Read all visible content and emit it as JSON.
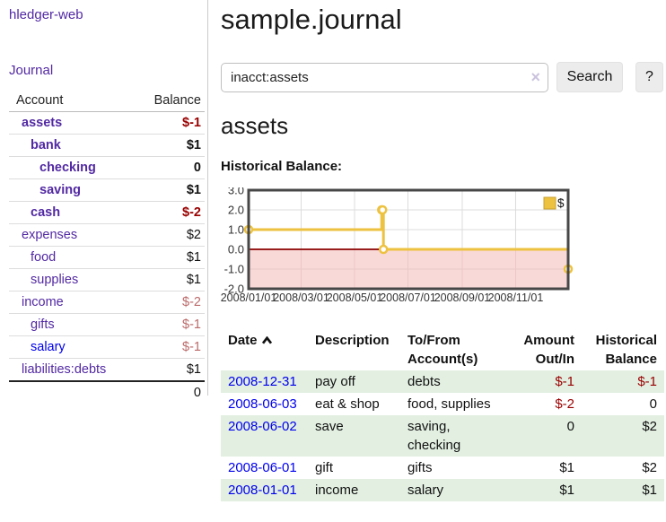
{
  "app": {
    "title": "hledger-web"
  },
  "sidebar": {
    "journal_link": "Journal",
    "accounts": {
      "header": {
        "account": "Account",
        "balance": "Balance"
      },
      "rows": [
        {
          "account": "assets",
          "balance": "$-1"
        },
        {
          "account": "bank",
          "balance": "$1"
        },
        {
          "account": "checking",
          "balance": "0"
        },
        {
          "account": "saving",
          "balance": "$1"
        },
        {
          "account": "cash",
          "balance": "$-2"
        },
        {
          "account": "expenses",
          "balance": "$2"
        },
        {
          "account": "food",
          "balance": "$1"
        },
        {
          "account": "supplies",
          "balance": "$1"
        },
        {
          "account": "income",
          "balance": "$-2"
        },
        {
          "account": "gifts",
          "balance": "$-1"
        },
        {
          "account": "salary",
          "balance": "$-1"
        },
        {
          "account": "liabilities:debts",
          "balance": "$1"
        }
      ],
      "total": "0"
    }
  },
  "main": {
    "title": "sample.journal",
    "search": {
      "value": "inacct:assets",
      "clear_icon": "×",
      "search_button": "Search",
      "help_button": "?"
    },
    "account_heading": "assets",
    "chart_label": "Historical Balance:"
  },
  "chart_data": {
    "type": "line",
    "title": "Historical Balance",
    "step": true,
    "x_range": [
      "2008-01-01",
      "2008-12-31"
    ],
    "ylim": [
      -2,
      3
    ],
    "y_ticks": [
      "3.0",
      "2.0",
      "1.0",
      "0.0",
      "-1.0",
      "-2.0"
    ],
    "x_ticks": [
      "2008/01/01",
      "2008/03/01",
      "2008/05/01",
      "2008/07/01",
      "2008/09/01",
      "2008/11/01"
    ],
    "series": [
      {
        "name": "$",
        "points": [
          [
            "2008-01-01",
            1
          ],
          [
            "2008-06-01",
            2
          ],
          [
            "2008-06-02",
            2
          ],
          [
            "2008-06-03",
            0
          ],
          [
            "2008-12-31",
            -1
          ]
        ]
      }
    ],
    "legend": {
      "label": "$",
      "position": "top-right"
    },
    "colors": {
      "line": "#edc240",
      "negative_fill": "#f4b8b8",
      "zero_line": "#8b0000",
      "grid": "#dcdcdc",
      "border": "#474747",
      "tick_text": "#333333"
    }
  },
  "register": {
    "headers": {
      "date": "Date",
      "description": "Description",
      "accounts": "To/From Account(s)",
      "amount": "Amount Out/In",
      "balance": "Historical Balance"
    },
    "rows": [
      {
        "date": "2008-12-31",
        "description": "pay off",
        "accounts": "debts",
        "amount": "$-1",
        "balance": "$-1"
      },
      {
        "date": "2008-06-03",
        "description": "eat & shop",
        "accounts": "food, supplies",
        "amount": "$-2",
        "balance": "0"
      },
      {
        "date": "2008-06-02",
        "description": "save",
        "accounts": "saving, checking",
        "amount": "0",
        "balance": "$2"
      },
      {
        "date": "2008-06-01",
        "description": "gift",
        "accounts": "gifts",
        "amount": "$1",
        "balance": "$2"
      },
      {
        "date": "2008-01-01",
        "description": "income",
        "accounts": "salary",
        "amount": "$1",
        "balance": "$1"
      }
    ]
  }
}
